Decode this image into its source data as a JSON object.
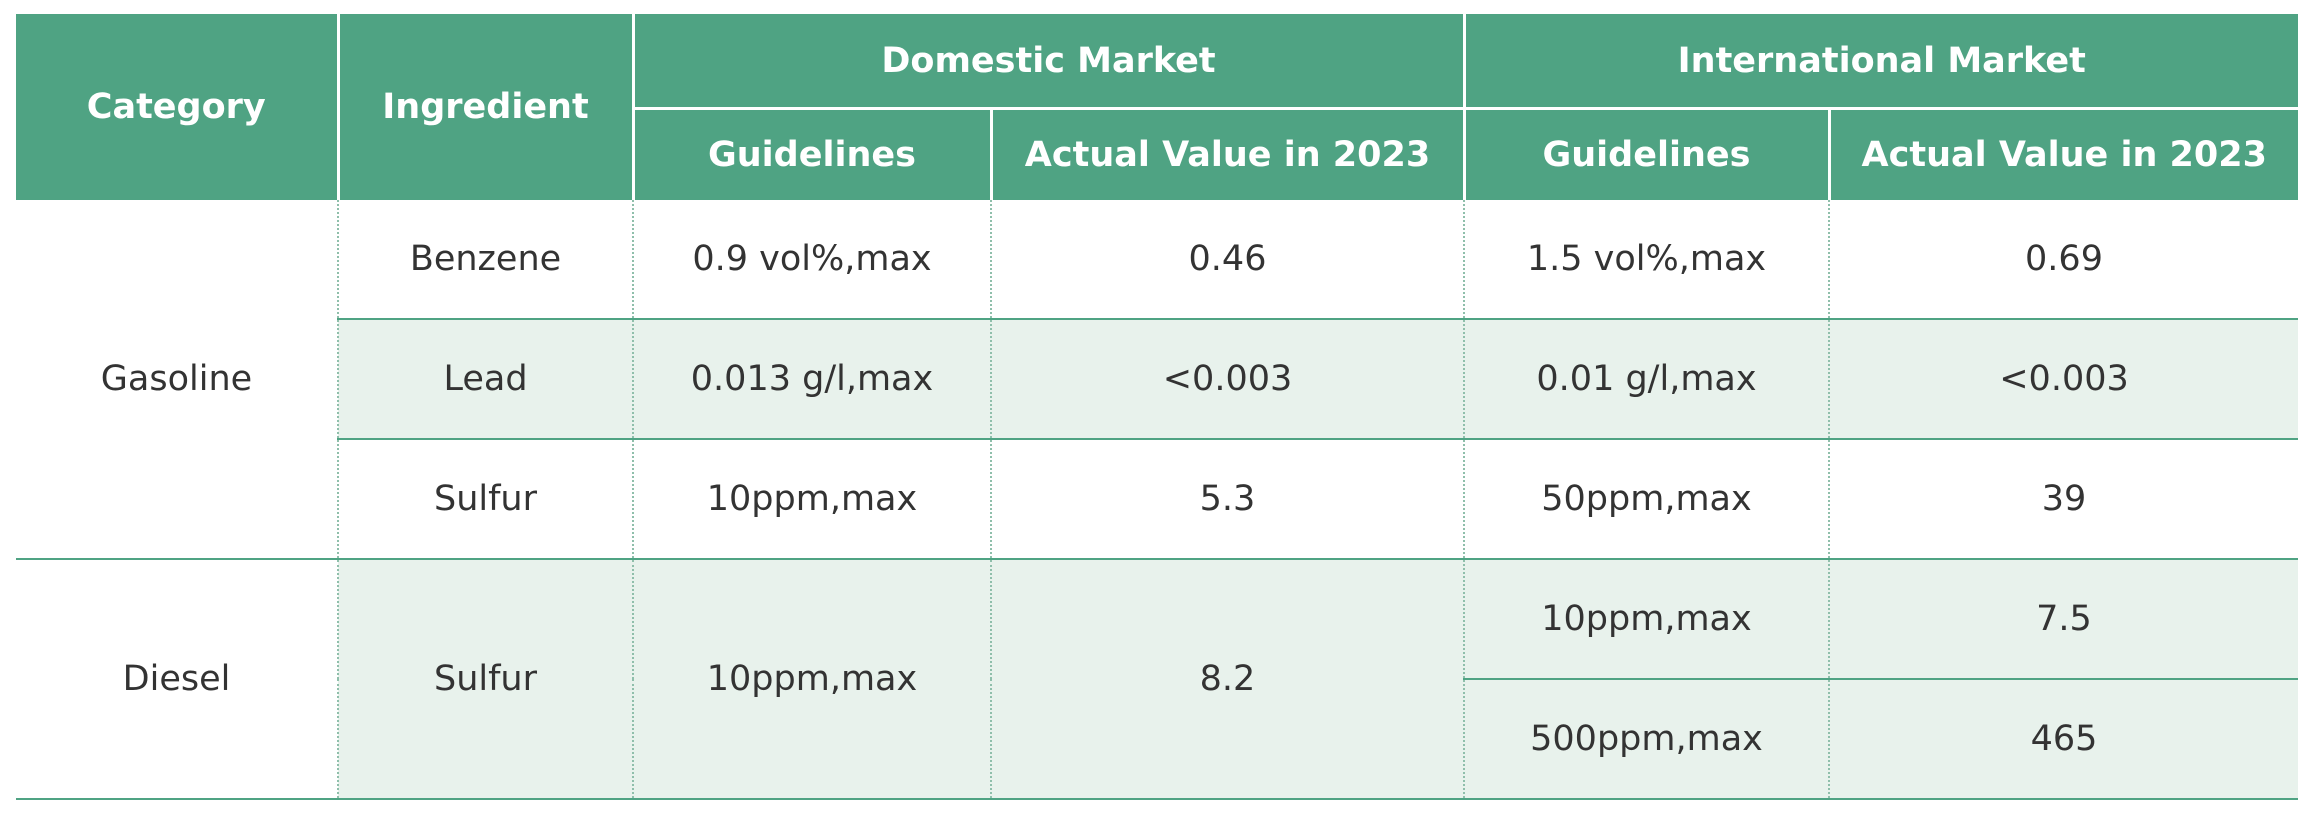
{
  "header": {
    "category": "Category",
    "ingredient": "Ingredient",
    "domestic_market": "Domestic Market",
    "international_market": "International Market",
    "guidelines": "Guidelines",
    "actual_value": "Actual Value in 2023"
  },
  "rows": {
    "gasoline": {
      "category": "Gasoline",
      "benzene": {
        "ingredient": "Benzene",
        "dom_guideline": "0.9 vol%,max",
        "dom_actual": "0.46",
        "int_guideline": "1.5 vol%,max",
        "int_actual": "0.69"
      },
      "lead": {
        "ingredient": "Lead",
        "dom_guideline": "0.013 g/l,max",
        "dom_actual": "<0.003",
        "int_guideline": "0.01 g/l,max",
        "int_actual": "<0.003"
      },
      "sulfur": {
        "ingredient": "Sulfur",
        "dom_guideline": "10ppm,max",
        "dom_actual": "5.3",
        "int_guideline": "50ppm,max",
        "int_actual": "39"
      }
    },
    "diesel": {
      "category": "Diesel",
      "ingredient": "Sulfur",
      "dom_guideline": "10ppm,max",
      "dom_actual": "8.2",
      "int": [
        {
          "guideline": "10ppm,max",
          "actual": "7.5"
        },
        {
          "guideline": "500ppm,max",
          "actual": "465"
        }
      ]
    }
  },
  "colors": {
    "header_bg": "#4fa383",
    "alt_row_bg": "#e8f2ec",
    "line": "#4fa383"
  }
}
